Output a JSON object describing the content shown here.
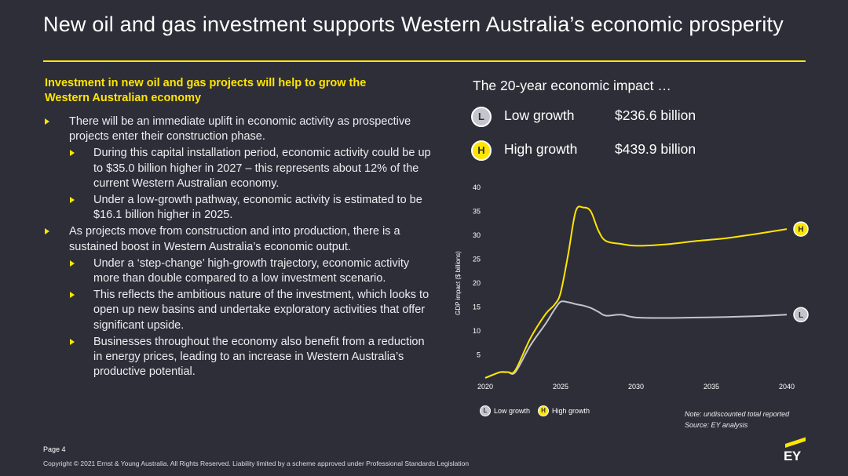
{
  "header": {
    "title": "New oil and gas investment supports Western Australia’s economic prosperity"
  },
  "left": {
    "lead": "Investment in new oil and gas projects will help to grow the Western Australian economy",
    "bullets": [
      {
        "level": 1,
        "text": "There will be an immediate uplift in economic activity as prospective projects enter their construction phase."
      },
      {
        "level": 2,
        "text": "During this capital installation period, economic activity could be up to $35.0 billion higher in 2027 – this represents about 12% of the current Western Australian economy."
      },
      {
        "level": 2,
        "text": "Under a low-growth pathway, economic activity is estimated to be $16.1 billion higher in 2025."
      },
      {
        "level": 1,
        "text": "As projects move from construction and into production, there is a sustained boost in Western Australia’s economic output."
      },
      {
        "level": 2,
        "text": "Under a ‘step-change’ high-growth trajectory, economic activity more than double compared to a low investment scenario."
      },
      {
        "level": 2,
        "text": "This reflects the ambitious nature of the investment, which looks to open up new basins and undertake exploratory activities that offer significant upside."
      },
      {
        "level": 2,
        "text": "Businesses throughout the economy also benefit from a reduction in energy prices, leading to an increase in Western Australia’s productive potential."
      }
    ]
  },
  "impact": {
    "title": "The 20-year economic impact …",
    "low": {
      "badge": "L",
      "label": "Low growth",
      "value": "$236.6 billion"
    },
    "high": {
      "badge": "H",
      "label": "High growth",
      "value": "$439.9 billion"
    }
  },
  "legend": {
    "low": {
      "badge": "L",
      "label": "Low growth"
    },
    "high": {
      "badge": "H",
      "label": "High growth"
    }
  },
  "note": {
    "line1": "Note: undiscounted total reported",
    "line2": "Source: EY analysis"
  },
  "footer": {
    "page": "Page 4",
    "copyright": "Copyright © 2021 Ernst & Young Australia. All Rights Reserved. Liability limited by a scheme approved under Professional Standards Legislation",
    "logo": "EY"
  },
  "colors": {
    "background": "#2e2e38",
    "accent": "#ffe600",
    "low_series": "#c4c4cd",
    "high_series": "#ffe600"
  },
  "chart_data": {
    "type": "line",
    "title": "",
    "xlabel": "",
    "ylabel": "GDP impact ($ billions)",
    "xlim": [
      2020,
      2040
    ],
    "ylim": [
      0,
      40
    ],
    "x_ticks": [
      "2020",
      "2025",
      "2030",
      "2035",
      "2040"
    ],
    "y_ticks": [
      "5",
      "10",
      "15",
      "20",
      "25",
      "30",
      "35",
      "40"
    ],
    "grid": false,
    "legend_position": "bottom-left",
    "series": [
      {
        "name": "Low growth",
        "marker": "L",
        "color": "#c4c4cd",
        "x": [
          2020,
          2020.5,
          2021,
          2021.5,
          2022,
          2023,
          2024,
          2024.6,
          2025,
          2025.5,
          2026,
          2026.5,
          2027,
          2027.5,
          2028,
          2029,
          2030,
          2032,
          2034,
          2036,
          2038,
          2040
        ],
        "y": [
          0.2,
          0.8,
          1.4,
          1.4,
          1.4,
          7.0,
          11.5,
          14.5,
          16.1,
          16.0,
          15.6,
          15.3,
          14.8,
          14.0,
          13.2,
          13.4,
          12.8,
          12.7,
          12.8,
          12.9,
          13.1,
          13.4
        ]
      },
      {
        "name": "High growth",
        "marker": "H",
        "color": "#ffe600",
        "x": [
          2020,
          2020.5,
          2021,
          2021.5,
          2022,
          2023,
          2024,
          2024.6,
          2025,
          2025.5,
          2026,
          2026.5,
          2027,
          2027.5,
          2028,
          2029,
          2030,
          2032,
          2034,
          2036,
          2038,
          2040
        ],
        "y": [
          0.2,
          0.8,
          1.4,
          1.4,
          1.8,
          8.5,
          13.5,
          15.5,
          18.0,
          26.0,
          35.0,
          35.8,
          35.0,
          31.0,
          28.8,
          28.2,
          27.8,
          28.1,
          28.8,
          29.4,
          30.3,
          31.3
        ]
      }
    ]
  }
}
